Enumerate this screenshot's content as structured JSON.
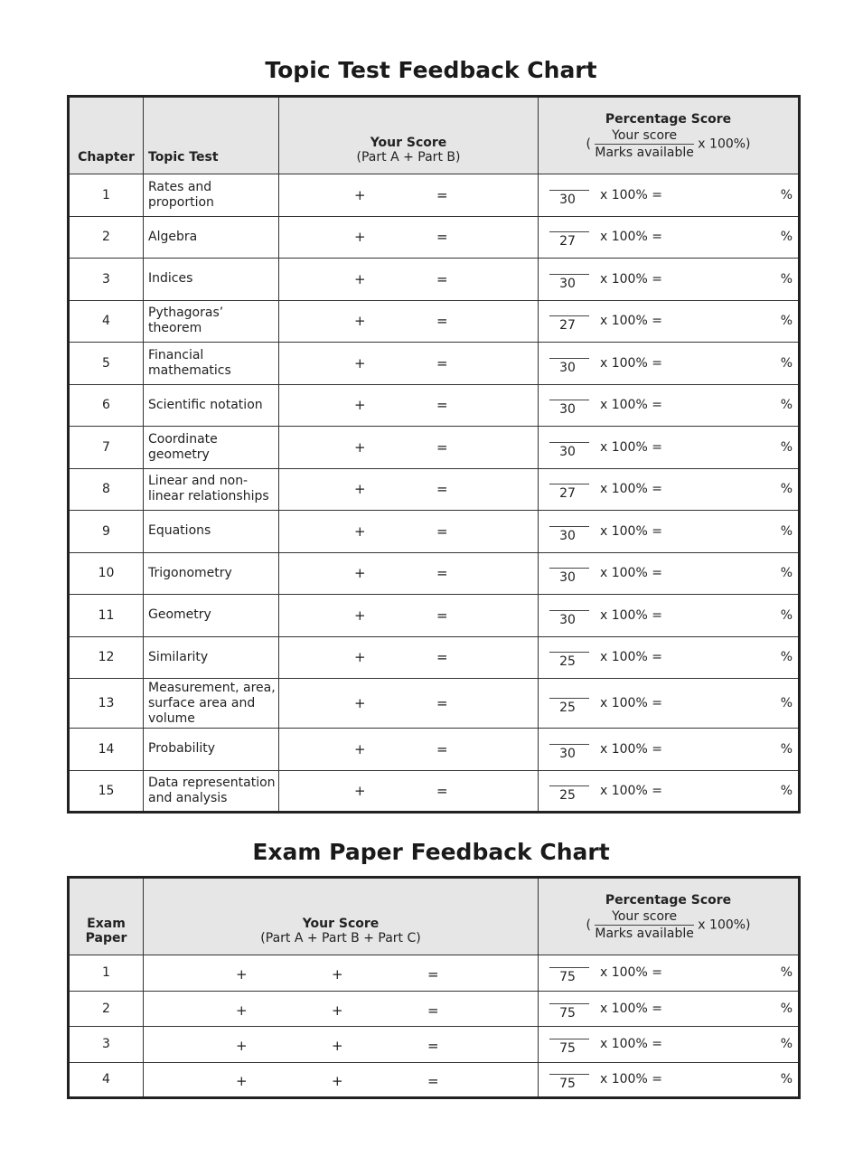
{
  "topic_chart": {
    "title": "Topic Test Feedback Chart",
    "headers": {
      "chapter": "Chapter",
      "topic": "Topic Test",
      "score": "Your Score",
      "score_sub": "(Part A + Part B)",
      "pct": "Percentage Score",
      "pct_num": "Your score",
      "pct_den": "Marks available",
      "pct_open": "(",
      "pct_mult": "x 100%)"
    },
    "symbols": {
      "plus": "+",
      "equals": "=",
      "mult": "x 100% =",
      "percent": "%"
    },
    "rows": [
      {
        "chapter": "1",
        "topic": "Rates and proportion",
        "marks": "30"
      },
      {
        "chapter": "2",
        "topic": "Algebra",
        "marks": "27"
      },
      {
        "chapter": "3",
        "topic": "Indices",
        "marks": "30"
      },
      {
        "chapter": "4",
        "topic": "Pythagoras’ theorem",
        "marks": "27"
      },
      {
        "chapter": "5",
        "topic": "Financial mathematics",
        "marks": "30"
      },
      {
        "chapter": "6",
        "topic": "Scientific notation",
        "marks": "30"
      },
      {
        "chapter": "7",
        "topic": "Coordinate geometry",
        "marks": "30"
      },
      {
        "chapter": "8",
        "topic": "Linear and non-linear relationships",
        "marks": "27"
      },
      {
        "chapter": "9",
        "topic": "Equations",
        "marks": "30"
      },
      {
        "chapter": "10",
        "topic": "Trigonometry",
        "marks": "30"
      },
      {
        "chapter": "11",
        "topic": "Geometry",
        "marks": "30"
      },
      {
        "chapter": "12",
        "topic": "Similarity",
        "marks": "25"
      },
      {
        "chapter": "13",
        "topic": "Measurement, area, surface area and volume",
        "marks": "25"
      },
      {
        "chapter": "14",
        "topic": "Probability",
        "marks": "30"
      },
      {
        "chapter": "15",
        "topic": "Data representation and analysis",
        "marks": "25"
      }
    ]
  },
  "exam_chart": {
    "title": "Exam Paper Feedback Chart",
    "headers": {
      "paper": "Exam Paper",
      "score": "Your Score",
      "score_sub": "(Part A + Part B + Part C)",
      "pct": "Percentage Score",
      "pct_num": "Your score",
      "pct_den": "Marks available",
      "pct_open": "(",
      "pct_mult": "x 100%)"
    },
    "rows": [
      {
        "paper": "1",
        "marks": "75"
      },
      {
        "paper": "2",
        "marks": "75"
      },
      {
        "paper": "3",
        "marks": "75"
      },
      {
        "paper": "4",
        "marks": "75"
      }
    ]
  }
}
